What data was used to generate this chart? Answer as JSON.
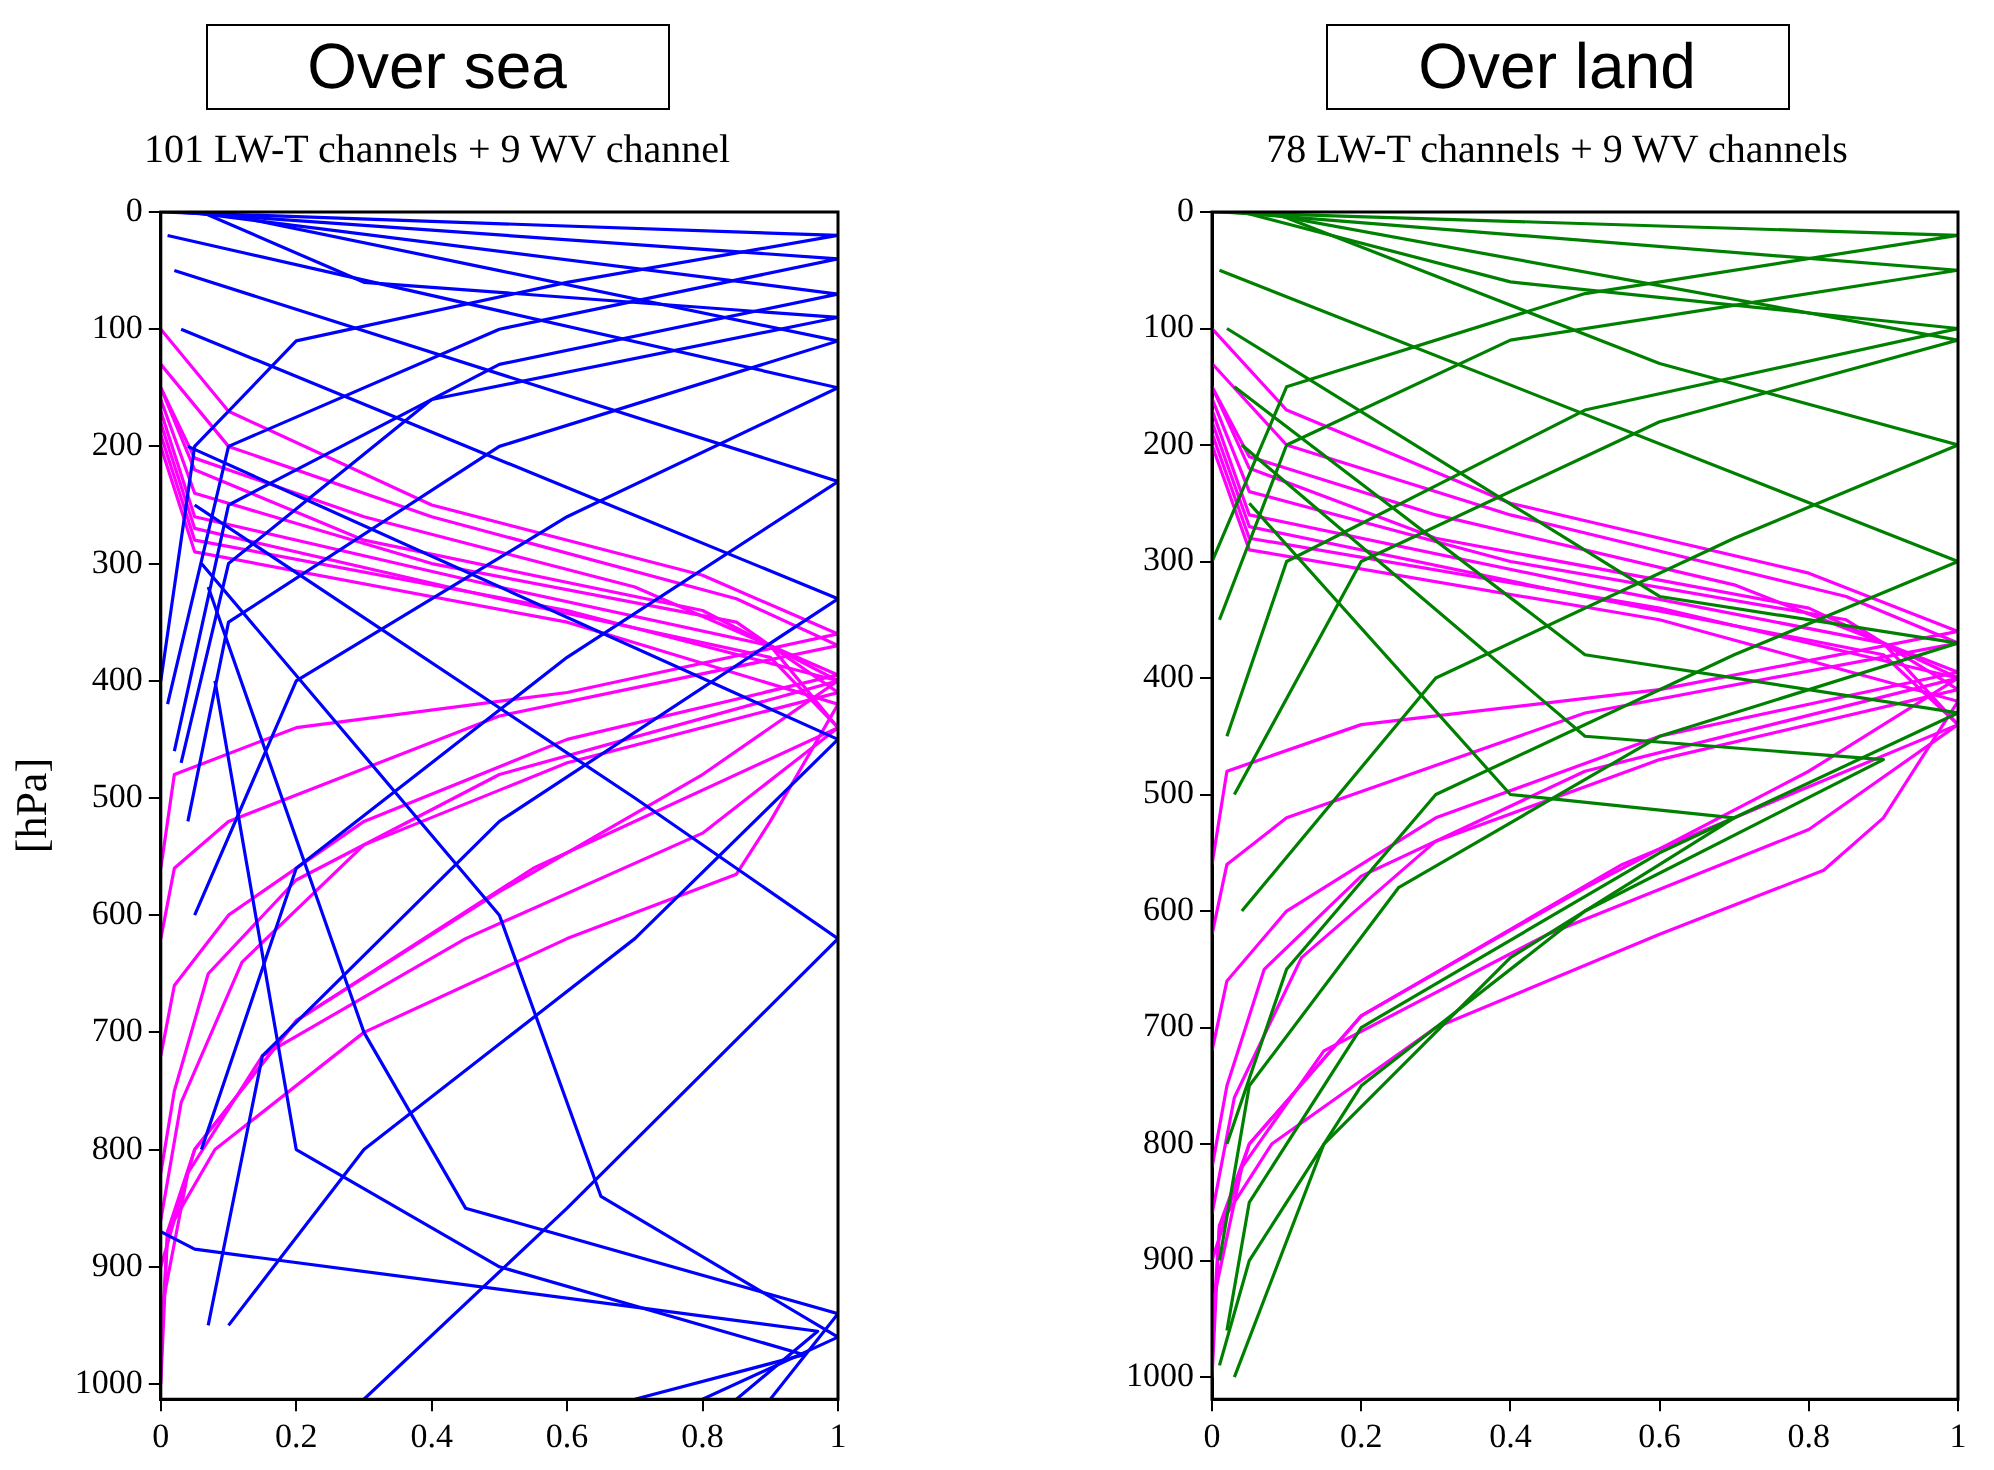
{
  "chart_data": [
    {
      "type": "line",
      "title": "Over sea",
      "subtitle": "101 LW-T channels + 9 WV channel",
      "ylabel": "[hPa]",
      "xlim": [
        0,
        1
      ],
      "xticks": [
        0,
        0.2,
        0.4,
        0.6,
        0.8,
        1
      ],
      "ylim": [
        1013,
        0
      ],
      "yticks": [
        0,
        100,
        200,
        300,
        400,
        500,
        600,
        700,
        800,
        900,
        1000
      ],
      "grid": false,
      "legend": false,
      "marker": "none",
      "series": [
        {
          "color": "#0000ff",
          "x": [
            0,
            1,
            0.6,
            0.2,
            0.05,
            0
          ],
          "values": [
            0,
            20,
            60,
            110,
            200,
            400
          ]
        },
        {
          "color": "#0000ff",
          "x": [
            0.02,
            1,
            0.5,
            0.1,
            0.01
          ],
          "values": [
            0,
            40,
            100,
            200,
            420
          ]
        },
        {
          "color": "#0000ff",
          "x": [
            0.04,
            1,
            0.5,
            0.1,
            0.02
          ],
          "values": [
            0,
            70,
            130,
            250,
            460
          ]
        },
        {
          "color": "#0000ff",
          "x": [
            0.06,
            0.3,
            1,
            0.4,
            0.1,
            0.03
          ],
          "values": [
            0,
            60,
            90,
            160,
            300,
            470
          ]
        },
        {
          "color": "#0000ff",
          "x": [
            0.08,
            0.5,
            1,
            0.5,
            0.1,
            0.04
          ],
          "values": [
            0,
            50,
            110,
            200,
            350,
            520
          ]
        },
        {
          "color": "#0000ff",
          "x": [
            0.01,
            1,
            0.6,
            0.2,
            0.05
          ],
          "values": [
            20,
            150,
            260,
            400,
            600
          ]
        },
        {
          "color": "#0000ff",
          "x": [
            0.02,
            1,
            0.6,
            0.2,
            0.06
          ],
          "values": [
            50,
            230,
            380,
            560,
            800
          ]
        },
        {
          "color": "#0000ff",
          "x": [
            0.03,
            1,
            0.5,
            0.15,
            0.07
          ],
          "values": [
            100,
            330,
            520,
            720,
            950
          ]
        },
        {
          "color": "#0000ff",
          "x": [
            0.04,
            1,
            0.7,
            0.3,
            0.1
          ],
          "values": [
            200,
            450,
            620,
            800,
            950
          ]
        },
        {
          "color": "#0000ff",
          "x": [
            0.05,
            0.7,
            1,
            0.6,
            0.3
          ],
          "values": [
            250,
            500,
            620,
            850,
            1013
          ]
        },
        {
          "color": "#0000ff",
          "x": [
            0.06,
            0.5,
            0.65,
            1,
            0.8
          ],
          "values": [
            300,
            600,
            840,
            960,
            1013
          ]
        },
        {
          "color": "#0000ff",
          "x": [
            0.07,
            0.3,
            0.45,
            1,
            0.9
          ],
          "values": [
            320,
            700,
            850,
            940,
            1013
          ]
        },
        {
          "color": "#0000ff",
          "x": [
            0.08,
            0.2,
            0.5,
            0.95,
            0.7
          ],
          "values": [
            400,
            800,
            900,
            975,
            1013
          ]
        },
        {
          "color": "#0000ff",
          "x": [
            0,
            0.05,
            0.97,
            0.85
          ],
          "values": [
            870,
            885,
            955,
            1013
          ]
        },
        {
          "color": "#ff00ff",
          "x": [
            0,
            0.1,
            0.4,
            0.8,
            1,
            0.6,
            0.2,
            0.02,
            0
          ],
          "values": [
            100,
            170,
            250,
            310,
            360,
            410,
            440,
            480,
            560
          ]
        },
        {
          "color": "#ff00ff",
          "x": [
            0,
            0.1,
            0.4,
            0.85,
            1,
            0.5,
            0.1,
            0.02,
            0
          ],
          "values": [
            130,
            200,
            260,
            330,
            370,
            430,
            520,
            560,
            620
          ]
        },
        {
          "color": "#ff00ff",
          "x": [
            0,
            0.05,
            0.3,
            0.7,
            1,
            0.6,
            0.3,
            0.1,
            0.02,
            0
          ],
          "values": [
            150,
            210,
            260,
            320,
            395,
            450,
            520,
            600,
            660,
            720
          ]
        },
        {
          "color": "#ff00ff",
          "x": [
            0,
            0.05,
            0.3,
            0.8,
            1,
            0.5,
            0.2,
            0.07,
            0.02,
            0
          ],
          "values": [
            150,
            220,
            280,
            340,
            400,
            480,
            570,
            650,
            750,
            820
          ]
        },
        {
          "color": "#ff00ff",
          "x": [
            0,
            0.05,
            0.4,
            0.85,
            1,
            0.6,
            0.3,
            0.12,
            0.03,
            0
          ],
          "values": [
            160,
            240,
            300,
            350,
            410,
            470,
            540,
            640,
            760,
            860
          ]
        },
        {
          "color": "#ff00ff",
          "x": [
            0,
            0.05,
            0.5,
            0.9,
            1,
            0.55,
            0.2,
            0.05,
            0
          ],
          "values": [
            170,
            260,
            320,
            370,
            440,
            560,
            690,
            800,
            900
          ]
        },
        {
          "color": "#ff00ff",
          "x": [
            0,
            0.05,
            0.5,
            0.9,
            1,
            0.8,
            0.45,
            0.15,
            0.04,
            0
          ],
          "values": [
            180,
            270,
            330,
            380,
            440,
            530,
            620,
            720,
            820,
            940
          ]
        },
        {
          "color": "#ff00ff",
          "x": [
            0,
            0.05,
            0.6,
            1,
            0.8,
            0.5,
            0.2,
            0.05,
            0.01,
            0
          ],
          "values": [
            190,
            280,
            340,
            400,
            480,
            580,
            690,
            800,
            870,
            970
          ]
        },
        {
          "color": "#ff00ff",
          "x": [
            0,
            0.05,
            0.6,
            1,
            0.9,
            0.85,
            0.6,
            0.3,
            0.08,
            0.01,
            0
          ],
          "values": [
            200,
            290,
            350,
            420,
            520,
            565,
            620,
            700,
            800,
            870,
            1000
          ]
        }
      ]
    },
    {
      "type": "line",
      "title": "Over land",
      "subtitle": "78 LW-T channels + 9 WV channels",
      "xlim": [
        0,
        1
      ],
      "xticks": [
        0,
        0.2,
        0.4,
        0.6,
        0.8,
        1
      ],
      "ylim": [
        1019,
        0
      ],
      "yticks": [
        0,
        100,
        200,
        300,
        400,
        500,
        600,
        700,
        800,
        900,
        1000
      ],
      "grid": false,
      "legend": false,
      "marker": "none",
      "series": [
        {
          "color": "#008000",
          "x": [
            0,
            1,
            0.5,
            0.1,
            0
          ],
          "values": [
            0,
            20,
            70,
            150,
            300
          ]
        },
        {
          "color": "#008000",
          "x": [
            0.02,
            1,
            0.4,
            0.1,
            0.01
          ],
          "values": [
            0,
            50,
            110,
            200,
            350
          ]
        },
        {
          "color": "#008000",
          "x": [
            0.04,
            0.4,
            1,
            0.5,
            0.1,
            0.02
          ],
          "values": [
            0,
            60,
            100,
            170,
            300,
            450
          ]
        },
        {
          "color": "#008000",
          "x": [
            0.06,
            1,
            0.6,
            0.2,
            0.03
          ],
          "values": [
            0,
            110,
            180,
            300,
            500
          ]
        },
        {
          "color": "#008000",
          "x": [
            0.08,
            0.6,
            1,
            0.7,
            0.3,
            0.04
          ],
          "values": [
            0,
            130,
            200,
            280,
            400,
            600
          ]
        },
        {
          "color": "#008000",
          "x": [
            0.01,
            1,
            0.7,
            0.3,
            0.1,
            0.02
          ],
          "values": [
            50,
            300,
            380,
            500,
            650,
            800
          ]
        },
        {
          "color": "#008000",
          "x": [
            0.02,
            0.6,
            1,
            0.6,
            0.25,
            0.05,
            0.01
          ],
          "values": [
            100,
            330,
            370,
            450,
            580,
            750,
            900
          ]
        },
        {
          "color": "#008000",
          "x": [
            0.03,
            0.5,
            1,
            0.6,
            0.2,
            0.05,
            0.02
          ],
          "values": [
            150,
            380,
            430,
            550,
            700,
            850,
            960
          ]
        },
        {
          "color": "#008000",
          "x": [
            0.04,
            0.5,
            0.9,
            0.5,
            0.2,
            0.05,
            0.01
          ],
          "values": [
            200,
            450,
            470,
            600,
            750,
            900,
            990
          ]
        },
        {
          "color": "#008000",
          "x": [
            0.05,
            0.4,
            0.7,
            0.4,
            0.15,
            0.03
          ],
          "values": [
            250,
            500,
            520,
            640,
            800,
            1000
          ]
        },
        {
          "color": "#ff00ff",
          "x": [
            0,
            0.1,
            0.4,
            0.8,
            1,
            0.6,
            0.2,
            0.02,
            0
          ],
          "values": [
            100,
            170,
            250,
            310,
            360,
            410,
            440,
            480,
            560
          ]
        },
        {
          "color": "#ff00ff",
          "x": [
            0,
            0.1,
            0.4,
            0.85,
            1,
            0.5,
            0.1,
            0.02,
            0
          ],
          "values": [
            130,
            200,
            260,
            330,
            370,
            430,
            520,
            560,
            620
          ]
        },
        {
          "color": "#ff00ff",
          "x": [
            0,
            0.05,
            0.3,
            0.7,
            1,
            0.6,
            0.3,
            0.1,
            0.02,
            0
          ],
          "values": [
            150,
            210,
            260,
            320,
            395,
            450,
            520,
            600,
            660,
            720
          ]
        },
        {
          "color": "#ff00ff",
          "x": [
            0,
            0.05,
            0.3,
            0.8,
            1,
            0.5,
            0.2,
            0.07,
            0.02,
            0
          ],
          "values": [
            150,
            220,
            280,
            340,
            400,
            480,
            570,
            650,
            750,
            820
          ]
        },
        {
          "color": "#ff00ff",
          "x": [
            0,
            0.05,
            0.4,
            0.85,
            1,
            0.6,
            0.3,
            0.12,
            0.03,
            0
          ],
          "values": [
            160,
            240,
            300,
            350,
            410,
            470,
            540,
            640,
            760,
            860
          ]
        },
        {
          "color": "#ff00ff",
          "x": [
            0,
            0.05,
            0.5,
            0.9,
            1,
            0.55,
            0.2,
            0.05,
            0
          ],
          "values": [
            170,
            260,
            320,
            370,
            440,
            560,
            690,
            800,
            900
          ]
        },
        {
          "color": "#ff00ff",
          "x": [
            0,
            0.05,
            0.5,
            0.9,
            1,
            0.8,
            0.45,
            0.15,
            0.04,
            0
          ],
          "values": [
            180,
            270,
            330,
            380,
            440,
            530,
            620,
            720,
            820,
            940
          ]
        },
        {
          "color": "#ff00ff",
          "x": [
            0,
            0.05,
            0.6,
            1,
            0.8,
            0.5,
            0.2,
            0.05,
            0.01,
            0
          ],
          "values": [
            190,
            280,
            340,
            400,
            480,
            580,
            690,
            800,
            870,
            970
          ]
        },
        {
          "color": "#ff00ff",
          "x": [
            0,
            0.05,
            0.6,
            1,
            0.9,
            0.82,
            0.6,
            0.3,
            0.08,
            0.01,
            0
          ],
          "values": [
            200,
            290,
            350,
            420,
            520,
            565,
            620,
            700,
            800,
            870,
            1000
          ]
        }
      ]
    }
  ]
}
